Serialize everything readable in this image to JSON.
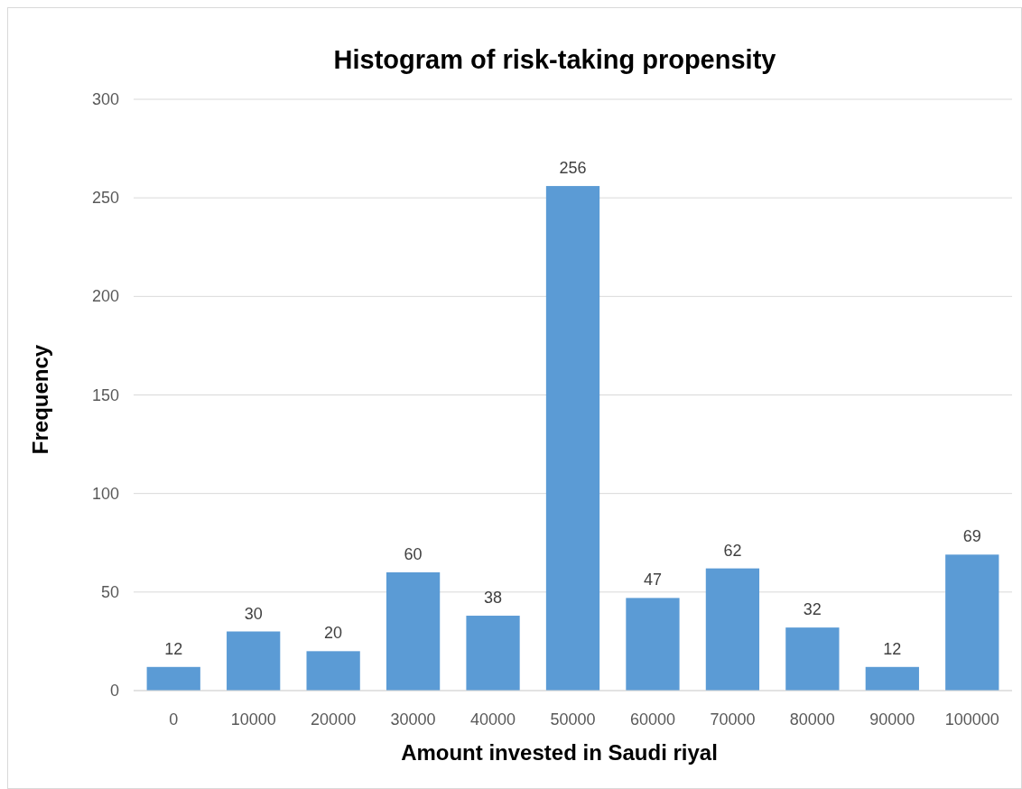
{
  "chart_data": {
    "type": "bar",
    "title": "Histogram of risk-taking propensity",
    "xlabel": "Amount invested in Saudi riyal",
    "ylabel": "Frequency",
    "categories": [
      "0",
      "10000",
      "20000",
      "30000",
      "40000",
      "50000",
      "60000",
      "70000",
      "80000",
      "90000",
      "100000"
    ],
    "values": [
      12,
      30,
      20,
      60,
      38,
      256,
      47,
      62,
      32,
      12,
      69
    ],
    "color": "#5b9bd5",
    "ylim": [
      0,
      300
    ],
    "yticks": [
      0,
      50,
      100,
      150,
      200,
      250,
      300
    ],
    "grid": "y",
    "data_labels": true
  }
}
